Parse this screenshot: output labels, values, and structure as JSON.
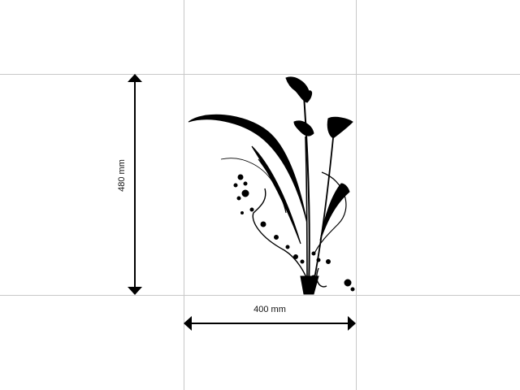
{
  "dimensions": {
    "height_label": "480 mm",
    "width_label": "400 mm"
  },
  "artwork": {
    "subject": "calla-lily-floral-decal",
    "color": "#000000"
  },
  "colors": {
    "guide_line": "#c8c8c8",
    "ink": "#000000"
  }
}
